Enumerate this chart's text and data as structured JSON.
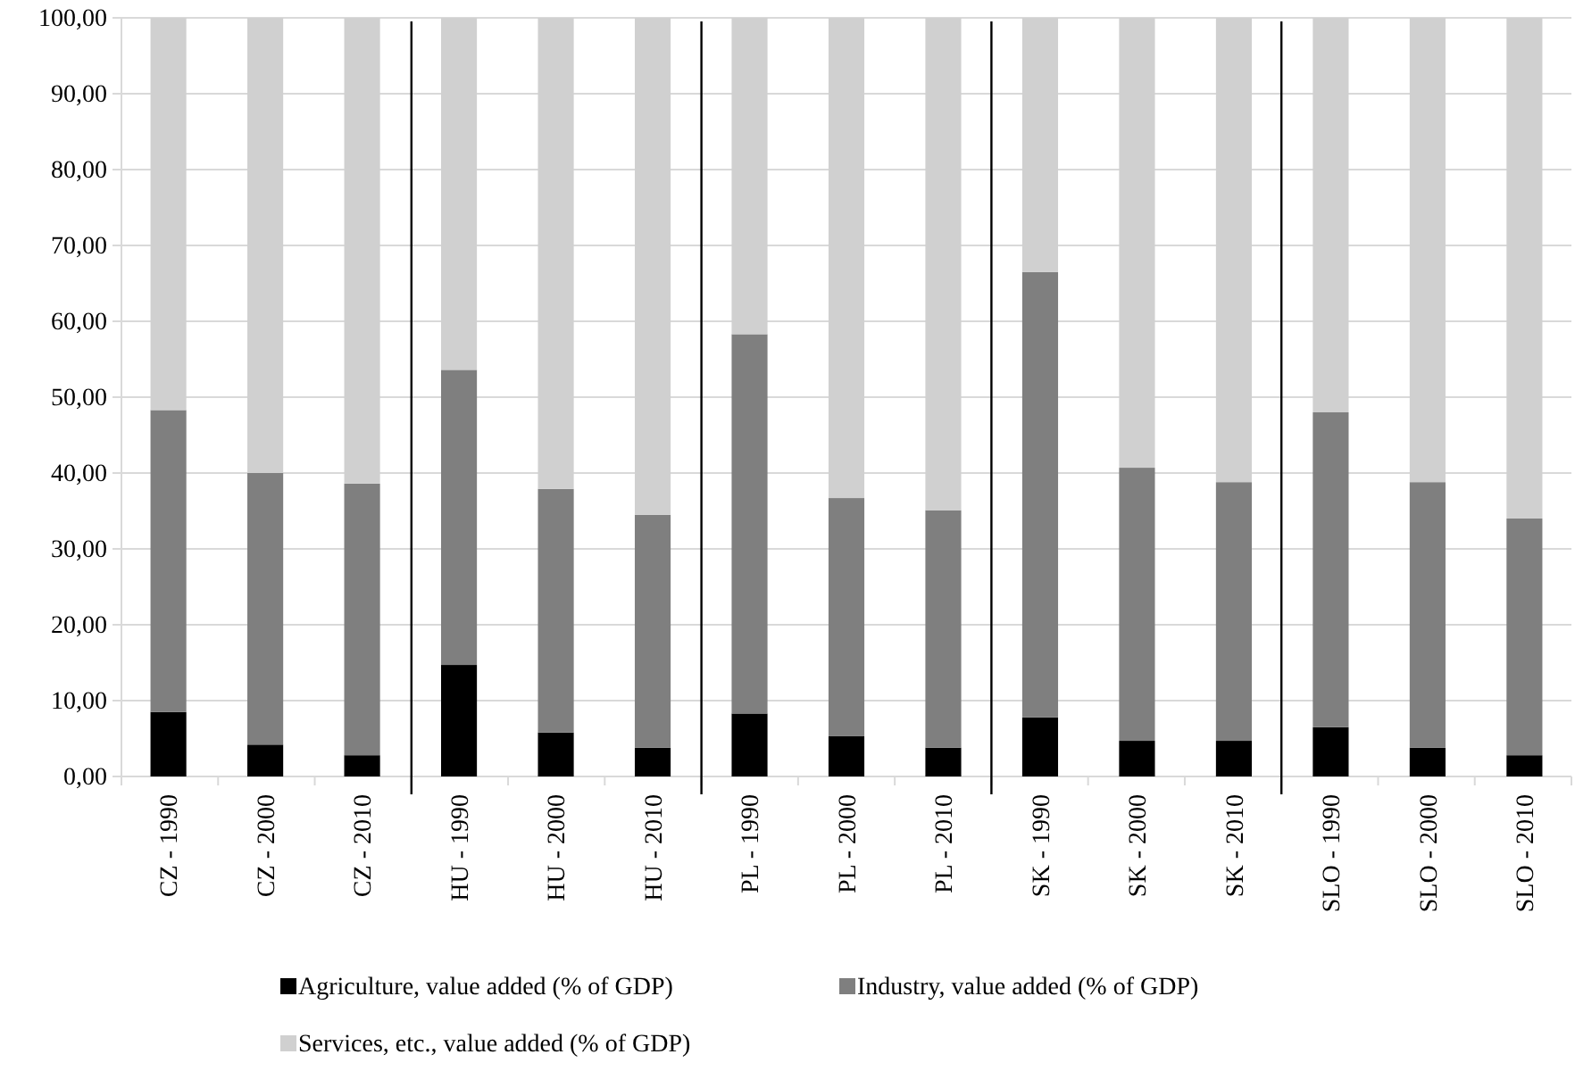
{
  "chart_data": {
    "type": "bar",
    "stacked": true,
    "categories": [
      "CZ - 1990",
      "CZ - 2000",
      "CZ - 2010",
      "HU - 1990",
      "HU - 2000",
      "HU - 2010",
      "PL - 1990",
      "PL - 2000",
      "PL - 2010",
      "SK - 1990",
      "SK - 2000",
      "SK - 2010",
      "SLO - 1990",
      "SLO - 2000",
      "SLO - 2010"
    ],
    "series": [
      {
        "name": "Agriculture, value added (% of GDP)",
        "color": "#000000",
        "values": [
          8.5,
          4.2,
          2.8,
          14.7,
          5.8,
          3.8,
          8.3,
          5.3,
          3.8,
          7.8,
          4.7,
          4.7,
          6.5,
          3.8,
          2.8
        ]
      },
      {
        "name": "Industry, value added (% of GDP)",
        "color": "#7f7f7f",
        "values": [
          39.8,
          35.8,
          35.8,
          38.9,
          32.1,
          30.7,
          50.0,
          31.4,
          31.3,
          58.7,
          36.0,
          34.1,
          41.5,
          35.0,
          31.2
        ]
      },
      {
        "name": "Services, etc., value added (% of GDP)",
        "color": "#d0d0d0",
        "values": [
          51.7,
          60.0,
          61.4,
          46.4,
          62.1,
          65.5,
          41.7,
          63.3,
          64.9,
          33.5,
          59.3,
          61.2,
          52.0,
          61.2,
          66.0
        ]
      }
    ],
    "ylim": [
      0,
      100
    ],
    "yticks": [
      {
        "value": 0,
        "label": "0,00"
      },
      {
        "value": 10,
        "label": "10,00"
      },
      {
        "value": 20,
        "label": "20,00"
      },
      {
        "value": 30,
        "label": "30,00"
      },
      {
        "value": 40,
        "label": "40,00"
      },
      {
        "value": 50,
        "label": "50,00"
      },
      {
        "value": 60,
        "label": "60,00"
      },
      {
        "value": 70,
        "label": "70,00"
      },
      {
        "value": 80,
        "label": "80,00"
      },
      {
        "value": 90,
        "label": "90,00"
      },
      {
        "value": 100,
        "label": "100,00"
      }
    ],
    "grid": "y",
    "legend": "bottom"
  }
}
